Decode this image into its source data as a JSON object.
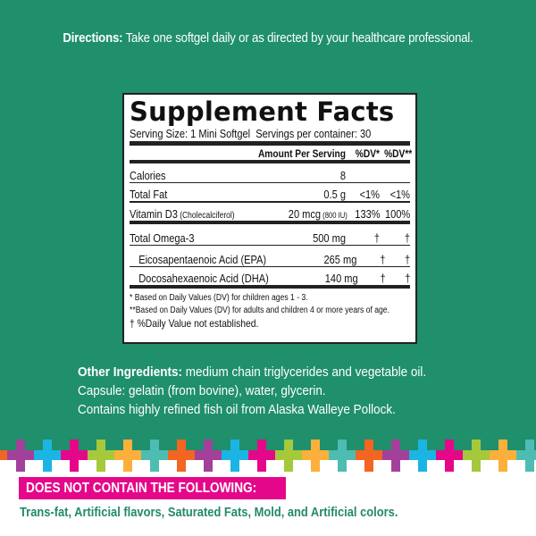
{
  "colors": {
    "background_green": "#1f8f6c",
    "banner_magenta": "#e5078a",
    "exclusion_text_green": "#238a66",
    "cross_palette": [
      "#f26522",
      "#a3419a",
      "#1bb5e3",
      "#e5078a",
      "#a6c83b",
      "#fbb03b",
      "#4dbdb3"
    ]
  },
  "directions": {
    "label": "Directions:",
    "text": " Take one softgel daily or as directed by your healthcare professional."
  },
  "supplement_facts": {
    "title": "Supplement Facts",
    "serving_size": "Serving Size: 1 Mini Softgel",
    "servings_per_container": "Servings per container: 30",
    "header": {
      "amount": "Amount Per Serving",
      "dv1": "%DV*",
      "dv2": "%DV**"
    },
    "rows": [
      {
        "name": "Calories",
        "name_note": "",
        "amount": "8",
        "amount_note": "",
        "dv1": "",
        "dv2": ""
      },
      {
        "name": "Total Fat",
        "name_note": "",
        "amount": "0.5 g",
        "amount_note": "",
        "dv1": "<1%",
        "dv2": "<1%"
      },
      {
        "name": "Vitamin D3",
        "name_note": " (Cholecalciferol)",
        "amount": "20 mcg",
        "amount_note": " (800 IU)",
        "dv1": "133%",
        "dv2": "100%"
      },
      {
        "name": "Total Omega-3",
        "name_note": "",
        "amount": "500 mg",
        "amount_note": "",
        "dv1": "†",
        "dv2": "†"
      },
      {
        "name": "Eicosapentaenoic Acid (EPA)",
        "name_note": "",
        "amount": "265 mg",
        "amount_note": "",
        "dv1": "†",
        "dv2": "†"
      },
      {
        "name": "Docosahexaenoic Acid (DHA)",
        "name_note": "",
        "amount": "140 mg",
        "amount_note": "",
        "dv1": "†",
        "dv2": "†"
      }
    ],
    "footnotes": [
      "* Based on Daily Values (DV) for children ages 1 - 3.",
      "**Based on Daily Values (DV) for adults and children 4 or more years of age.",
      "† %Daily Value not established."
    ]
  },
  "other_ingredients": {
    "label": "Other Ingredients:",
    "line1": " medium chain triglycerides and vegetable oil.",
    "line2": "Capsule: gelatin (from bovine), water, glycerin.",
    "line3": "Contains highly refined fish oil from Alaska Walleye Pollock."
  },
  "does_not_contain": {
    "heading": "DOES NOT CONTAIN THE FOLLOWING:",
    "list": "Trans-fat, Artificial flavors, Saturated Fats, Mold, and Artificial colors."
  }
}
